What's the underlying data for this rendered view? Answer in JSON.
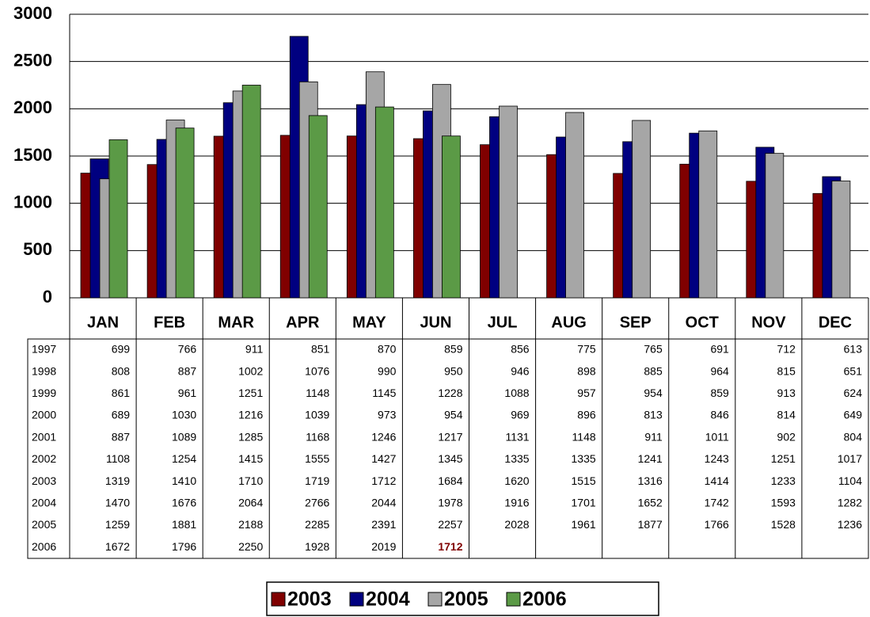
{
  "chart_data": {
    "type": "bar",
    "categories": [
      "JAN",
      "FEB",
      "MAR",
      "APR",
      "MAY",
      "JUN",
      "JUL",
      "AUG",
      "SEP",
      "OCT",
      "NOV",
      "DEC"
    ],
    "series": [
      {
        "name": "2003",
        "color": "#800000",
        "values": [
          1319,
          1410,
          1710,
          1719,
          1712,
          1684,
          1620,
          1515,
          1316,
          1414,
          1233,
          1104
        ]
      },
      {
        "name": "2004",
        "color": "#000080",
        "values": [
          1470,
          1676,
          2064,
          2766,
          2044,
          1978,
          1916,
          1701,
          1652,
          1742,
          1593,
          1282
        ]
      },
      {
        "name": "2005",
        "color": "#a6a6a6",
        "values": [
          1259,
          1881,
          2188,
          2285,
          2391,
          2257,
          2028,
          1961,
          1877,
          1766,
          1528,
          1236
        ]
      },
      {
        "name": "2006",
        "color": "#5b9a46",
        "values": [
          1672,
          1796,
          2250,
          1928,
          2019,
          1712,
          null,
          null,
          null,
          null,
          null,
          null
        ]
      }
    ],
    "table_rows": [
      {
        "label": "1997",
        "values": [
          699,
          766,
          911,
          851,
          870,
          859,
          856,
          775,
          765,
          691,
          712,
          613
        ]
      },
      {
        "label": "1998",
        "values": [
          808,
          887,
          1002,
          1076,
          990,
          950,
          946,
          898,
          885,
          964,
          815,
          651
        ]
      },
      {
        "label": "1999",
        "values": [
          861,
          961,
          1251,
          1148,
          1145,
          1228,
          1088,
          957,
          954,
          859,
          913,
          624
        ]
      },
      {
        "label": "2000",
        "values": [
          689,
          1030,
          1216,
          1039,
          973,
          954,
          969,
          896,
          813,
          846,
          814,
          649
        ]
      },
      {
        "label": "2001",
        "values": [
          887,
          1089,
          1285,
          1168,
          1246,
          1217,
          1131,
          1148,
          911,
          1011,
          902,
          804
        ]
      },
      {
        "label": "2002",
        "values": [
          1108,
          1254,
          1415,
          1555,
          1427,
          1345,
          1335,
          1335,
          1241,
          1243,
          1251,
          1017
        ]
      }
    ],
    "ylim": [
      0,
      3000
    ],
    "yticks": [
      0,
      500,
      1000,
      1500,
      2000,
      2500,
      3000
    ],
    "grid": true
  }
}
